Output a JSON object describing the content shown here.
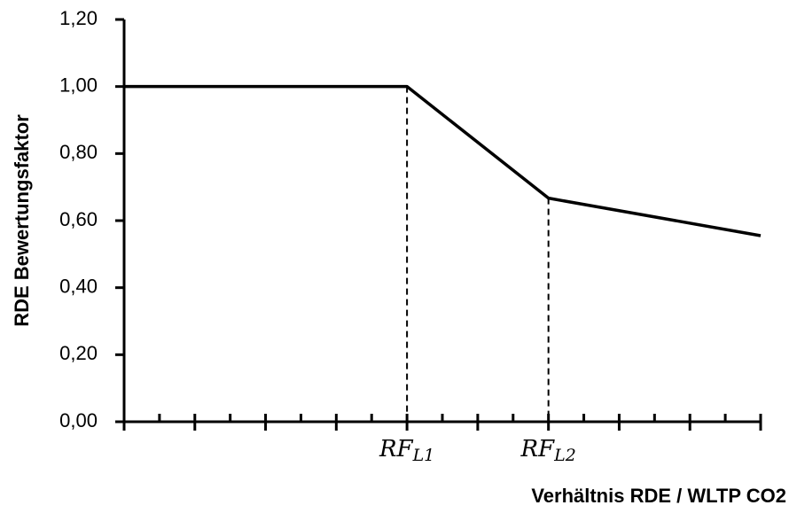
{
  "chart_data": {
    "type": "line",
    "ylabel": "RDE Bewertungsfaktor",
    "xlabel": "Verhältnis RDE / WLTP CO2",
    "x": [
      0,
      8,
      12,
      18
    ],
    "series": [
      {
        "color": "#000000",
        "values": [
          1.0,
          1.0,
          0.667,
          0.555
        ]
      }
    ],
    "xlim": [
      0,
      18
    ],
    "xticks": [
      0,
      1,
      2,
      3,
      4,
      5,
      6,
      7,
      8,
      9,
      10,
      11,
      12,
      13,
      14,
      15,
      16,
      17,
      18
    ],
    "xtick_labels_shown": false,
    "ylim": [
      0,
      1.2
    ],
    "yticks": [
      {
        "value": 0,
        "label": "0,00"
      },
      {
        "value": 0.2,
        "label": "0,20"
      },
      {
        "value": 0.4,
        "label": "0,40"
      },
      {
        "value": 0.6,
        "label": "0,60"
      },
      {
        "value": 0.8,
        "label": "0,80"
      },
      {
        "value": 1.0,
        "label": "1,00"
      },
      {
        "value": 1.2,
        "label": "1,20"
      }
    ],
    "grid": false,
    "annotations": [
      {
        "text": "RF",
        "sub": "L1",
        "point": 1
      },
      {
        "text": "RF",
        "sub": "L2",
        "point": 2
      }
    ]
  }
}
